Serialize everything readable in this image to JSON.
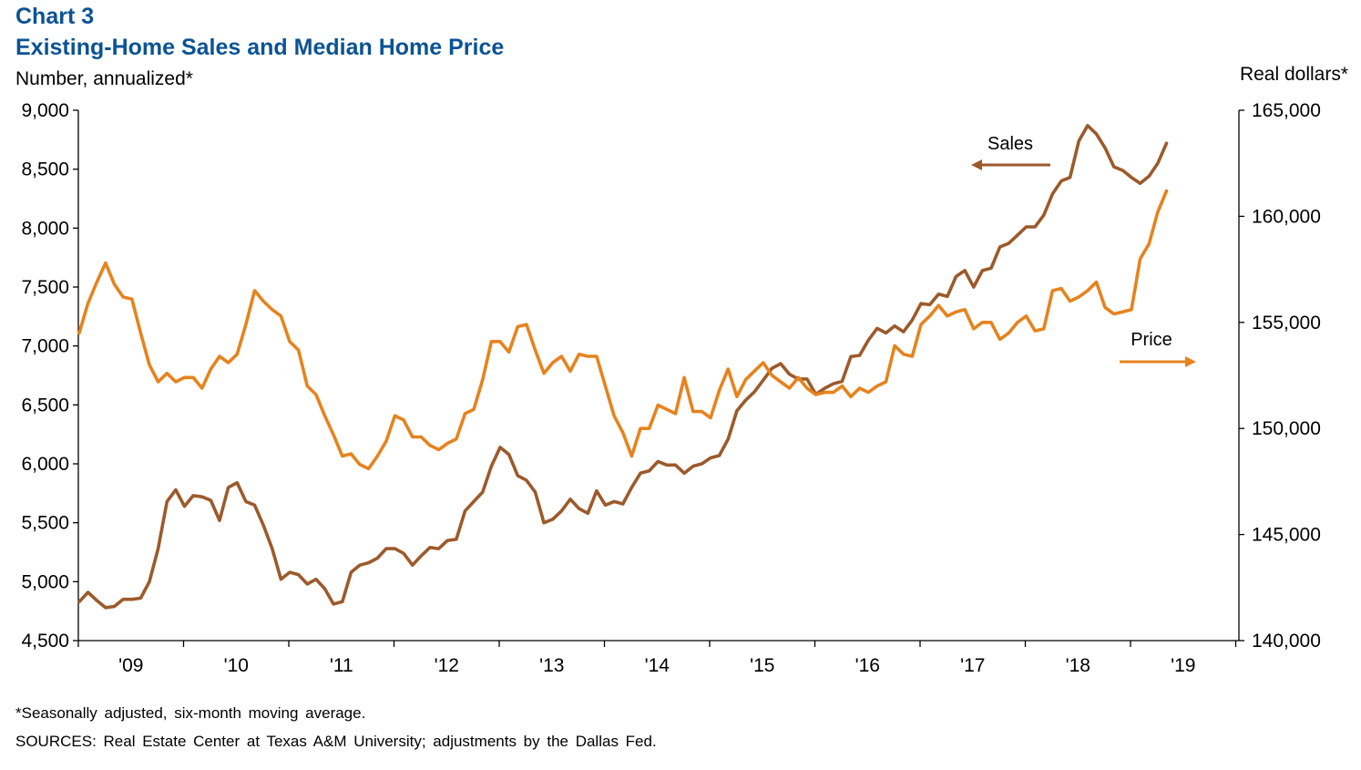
{
  "header": {
    "kicker": "Chart 3",
    "title": "Existing-Home Sales and Median Home Price"
  },
  "footnotes": {
    "note": "*Seasonally adjusted, six-month moving average.",
    "sources": "SOURCES: Real Estate Center at Texas A&M University; adjustments by the Dallas Fed."
  },
  "chart_data": {
    "type": "line",
    "title": "Existing-Home Sales and Median Home Price",
    "ylabel_left": "Number, annualized*",
    "ylabel_right": "Real dollars*",
    "ylim_left": [
      4500,
      9000
    ],
    "ylim_right": [
      140000,
      165000
    ],
    "yticks_left": [
      "4,500",
      "5,000",
      "5,500",
      "6,000",
      "6,500",
      "7,000",
      "7,500",
      "8,000",
      "8,500",
      "9,000"
    ],
    "yticks_right": [
      "140,000",
      "145,000",
      "150,000",
      "155,000",
      "160,000",
      "165,000"
    ],
    "x_tick_labels": [
      "'09",
      "'10",
      "'11",
      "'12",
      "'13",
      "'14",
      "'15",
      "'16",
      "'17",
      "'18",
      "'19"
    ],
    "x_start": "2009-01",
    "grid": false,
    "series": [
      {
        "name": "Sales",
        "axis": "left",
        "color": "#9c5a2b",
        "values": [
          4830,
          4910,
          4840,
          4780,
          4790,
          4850,
          4850,
          4860,
          5000,
          5280,
          5680,
          5780,
          5640,
          5730,
          5720,
          5690,
          5520,
          5800,
          5840,
          5680,
          5650,
          5480,
          5280,
          5020,
          5080,
          5060,
          4980,
          5020,
          4940,
          4810,
          4830,
          5080,
          5140,
          5160,
          5200,
          5280,
          5280,
          5240,
          5140,
          5220,
          5290,
          5280,
          5350,
          5360,
          5600,
          5680,
          5760,
          5980,
          6140,
          6080,
          5900,
          5860,
          5760,
          5500,
          5530,
          5600,
          5700,
          5620,
          5580,
          5770,
          5650,
          5680,
          5660,
          5800,
          5920,
          5940,
          6020,
          5990,
          5990,
          5920,
          5980,
          6000,
          6050,
          6070,
          6210,
          6450,
          6540,
          6610,
          6710,
          6810,
          6850,
          6760,
          6720,
          6720,
          6590,
          6640,
          6680,
          6700,
          6910,
          6920,
          7050,
          7150,
          7110,
          7170,
          7120,
          7220,
          7360,
          7350,
          7440,
          7420,
          7590,
          7640,
          7500,
          7640,
          7660,
          7840,
          7870,
          7940,
          8010,
          8010,
          8110,
          8290,
          8400,
          8430,
          8740,
          8870,
          8800,
          8680,
          8520,
          8490,
          8430,
          8380,
          8440,
          8550,
          8720
        ]
      },
      {
        "name": "Price",
        "axis": "right",
        "color": "#e6831e",
        "values": [
          154500,
          155900,
          156900,
          157800,
          156800,
          156200,
          156100,
          154500,
          153000,
          152200,
          152600,
          152200,
          152400,
          152400,
          151900,
          152800,
          153400,
          153100,
          153500,
          154900,
          156500,
          156000,
          155600,
          155300,
          154100,
          153700,
          152000,
          151600,
          150600,
          149700,
          148700,
          148800,
          148300,
          148100,
          148700,
          149400,
          150600,
          150400,
          149600,
          149600,
          149200,
          149000,
          149300,
          149500,
          150700,
          150900,
          152300,
          154100,
          154100,
          153600,
          154800,
          154900,
          153700,
          152600,
          153100,
          153400,
          152700,
          153500,
          153400,
          153400,
          152000,
          150600,
          149800,
          148700,
          150000,
          150000,
          151100,
          150900,
          150700,
          152400,
          150800,
          150800,
          150500,
          151800,
          152800,
          151500,
          152300,
          152700,
          153100,
          152500,
          152200,
          151900,
          152400,
          151900,
          151600,
          151700,
          151700,
          152000,
          151500,
          151900,
          151700,
          152000,
          152200,
          153900,
          153500,
          153400,
          154900,
          155300,
          155800,
          155300,
          155500,
          155600,
          154700,
          155000,
          155000,
          154200,
          154500,
          155000,
          155300,
          154600,
          154700,
          156500,
          156600,
          156000,
          156200,
          156500,
          156900,
          155700,
          155400,
          155500,
          155600,
          158000,
          158700,
          160200,
          161200
        ]
      }
    ],
    "annotations": [
      {
        "text": "Sales",
        "arrow": "left",
        "series": "Sales"
      },
      {
        "text": "Price",
        "arrow": "right",
        "series": "Price"
      }
    ]
  }
}
